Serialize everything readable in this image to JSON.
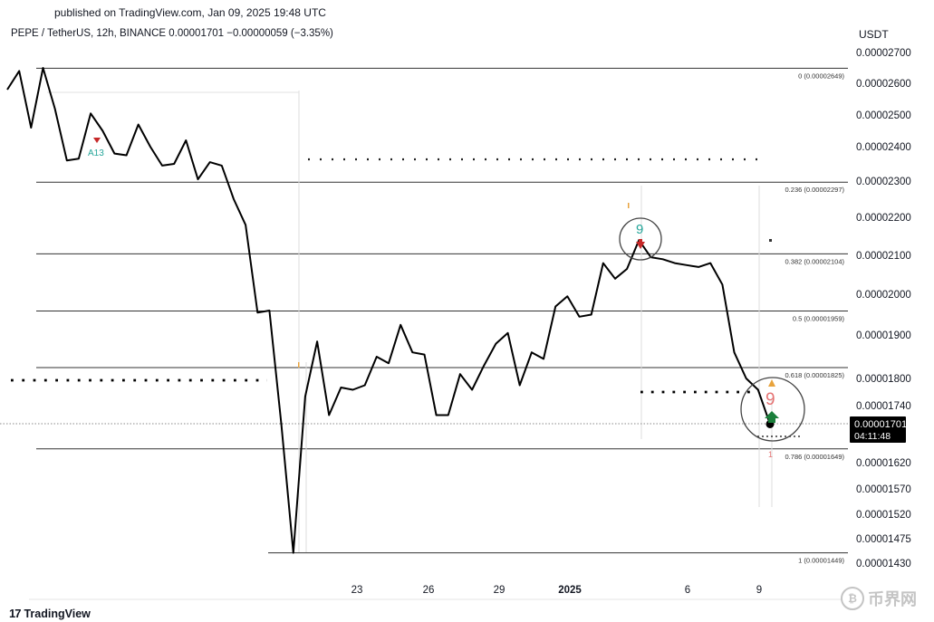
{
  "header": {
    "published": "published on TradingView.com, Jan 09, 2025 19:48 UTC",
    "symbol_line": "PEPE / TetherUS, 12h, BINANCE  0.00001701  −0.00000059 (−3.35%)"
  },
  "footer": {
    "logo_text": "TradingView",
    "logo_mark": "17",
    "watermark_text": "币界网",
    "watermark_coin": "₿"
  },
  "chart_data": {
    "type": "line",
    "currency_label": "USDT",
    "y_ticks": [
      "0.00002700",
      "0.00002600",
      "0.00002500",
      "0.00002400",
      "0.00002300",
      "0.00002200",
      "0.00002100",
      "0.00002000",
      "0.00001900",
      "0.00001800",
      "0.00001740",
      "0.00001620",
      "0.00001570",
      "0.00001520",
      "0.00001475",
      "0.00001430"
    ],
    "x_ticks": [
      "23",
      "26",
      "29",
      "2025",
      "6",
      "9"
    ],
    "price_label": {
      "value": "0.00001701",
      "countdown": "04:11:48"
    },
    "fib_levels": [
      {
        "ratio": "0",
        "value": 2.649e-05,
        "label": "0 (0.00002649)"
      },
      {
        "ratio": "0.236",
        "value": 2.297e-05,
        "label": "0.236 (0.00002297)"
      },
      {
        "ratio": "0.382",
        "value": 2.104e-05,
        "label": "0.382 (0.00002104)"
      },
      {
        "ratio": "0.5",
        "value": 1.959e-05,
        "label": "0.5 (0.00001959)"
      },
      {
        "ratio": "0.618",
        "value": 1.825e-05,
        "label": "0.618 (0.00001825)"
      },
      {
        "ratio": "0.786",
        "value": 1.649e-05,
        "label": "0.786 (0.00001649)"
      },
      {
        "ratio": "1",
        "value": 1.449e-05,
        "label": "1 (0.00001449)"
      }
    ],
    "series": [
      {
        "values": [
          2.58e-05,
          2.64e-05,
          2.46e-05,
          2.65e-05,
          2.52e-05,
          2.36e-05,
          2.365e-05,
          2.505e-05,
          2.45e-05,
          2.38e-05,
          2.375e-05,
          2.47e-05,
          2.4e-05,
          2.345e-05,
          2.35e-05,
          2.42e-05,
          2.305e-05,
          2.355e-05,
          2.345e-05,
          2.25e-05,
          2.18e-05,
          1.955e-05,
          1.96e-05,
          1.7e-05,
          1.449e-05,
          1.76e-05,
          1.885e-05,
          1.72e-05,
          1.78e-05,
          1.775e-05,
          1.785e-05,
          1.85e-05,
          1.835e-05,
          1.925e-05,
          1.86e-05,
          1.855e-05,
          1.72e-05,
          1.72e-05,
          1.81e-05,
          1.775e-05,
          1.83e-05,
          1.88e-05,
          1.905e-05,
          1.785e-05,
          1.86e-05,
          1.845e-05,
          1.97e-05,
          1.995e-05,
          1.945e-05,
          1.95e-05,
          2.08e-05,
          2.04e-05,
          2.065e-05,
          2.14e-05,
          2.095e-05,
          2.09e-05,
          2.08e-05,
          2.075e-05,
          2.07e-05,
          2.08e-05,
          2.025e-05,
          1.86e-05,
          1.8e-05,
          1.775e-05,
          1.701e-05
        ]
      }
    ],
    "annotations": [
      {
        "text": "A13",
        "color": "#26a69a"
      },
      {
        "text": "9",
        "color": "#26a69a"
      },
      {
        "text": "9",
        "color": "#e57373"
      },
      {
        "text": "1",
        "color": "#e57373"
      }
    ]
  },
  "colors": {
    "line": "#000000",
    "fib": "#333333",
    "up_arrow": "#1b7f3b",
    "down_arrow": "#c62828",
    "price_label_bg": "#000000"
  }
}
